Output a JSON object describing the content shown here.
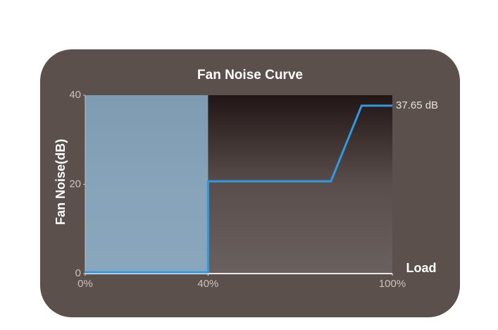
{
  "chart_data": {
    "type": "line",
    "title": "Fan Noise Curve",
    "y_label": "Fan Noise(dB)",
    "x_label": "Load",
    "x": [
      0,
      40,
      40,
      80,
      90,
      100
    ],
    "values": [
      0.3,
      0.3,
      20.7,
      20.7,
      37.65,
      37.65
    ],
    "color": "#2e9be0",
    "annotation": "37.65 dB",
    "shaded_range": [
      0,
      40
    ],
    "shade_color": "#8fb3cc",
    "xlim": [
      0,
      100
    ],
    "ylim": [
      0,
      40
    ],
    "xticks": [
      {
        "value": 0,
        "label": "0%"
      },
      {
        "value": 40,
        "label": "40%"
      },
      {
        "value": 100,
        "label": "100%"
      }
    ],
    "yticks": [
      0,
      20,
      40
    ]
  }
}
